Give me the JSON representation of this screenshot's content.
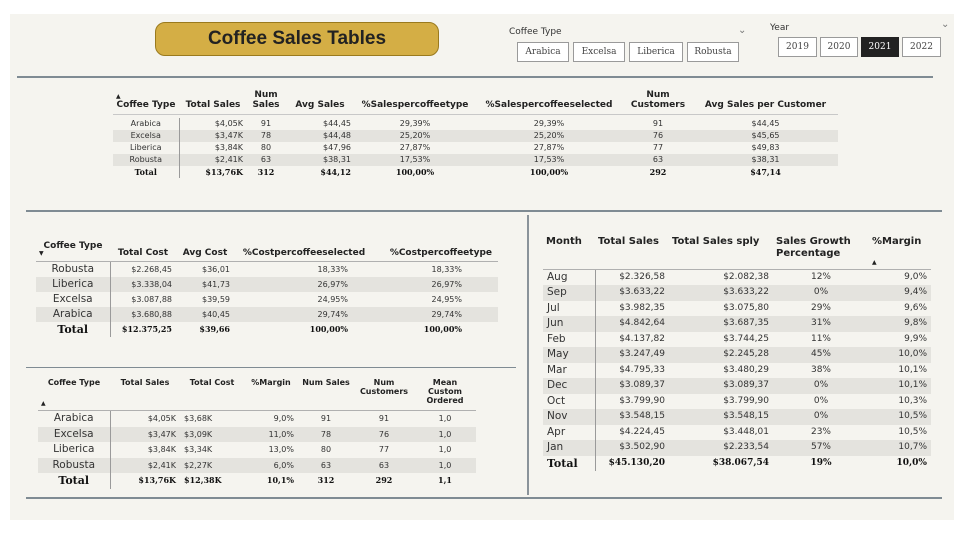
{
  "title": "Coffee Sales Tables",
  "coffee_slicer": {
    "label": "Coffee Type",
    "options": [
      "Arabica",
      "Excelsa",
      "Liberica",
      "Robusta"
    ]
  },
  "year_slicer": {
    "label": "Year",
    "options": [
      "2019",
      "2020",
      "2021",
      "2022"
    ],
    "selected": "2021"
  },
  "table1": {
    "headers": [
      "Coffee Type",
      "Total Sales",
      "Num Sales",
      "Avg Sales",
      "%Salespercoffeetype",
      "%Salespercoffeeselected",
      "Num Customers",
      "Avg Sales per Customer"
    ],
    "rows": [
      [
        "Arabica",
        "$4,05K",
        "91",
        "$44,45",
        "29,39%",
        "29,39%",
        "91",
        "$44,45"
      ],
      [
        "Excelsa",
        "$3,47K",
        "78",
        "$44,48",
        "25,20%",
        "25,20%",
        "76",
        "$45,65"
      ],
      [
        "Liberica",
        "$3,84K",
        "80",
        "$47,96",
        "27,87%",
        "27,87%",
        "77",
        "$49,83"
      ],
      [
        "Robusta",
        "$2,41K",
        "63",
        "$38,31",
        "17,53%",
        "17,53%",
        "63",
        "$38,31"
      ]
    ],
    "total": [
      "Total",
      "$13,76K",
      "312",
      "$44,12",
      "100,00%",
      "100,00%",
      "292",
      "$47,14"
    ]
  },
  "table2": {
    "headers": [
      "Coffee Type",
      "Total Cost",
      "Avg Cost",
      "%Costpercoffeeselected",
      "%Costpercoffeetype"
    ],
    "rows": [
      [
        "Robusta",
        "$2.268,45",
        "$36,01",
        "18,33%",
        "18,33%"
      ],
      [
        "Liberica",
        "$3.338,04",
        "$41,73",
        "26,97%",
        "26,97%"
      ],
      [
        "Excelsa",
        "$3.087,88",
        "$39,59",
        "24,95%",
        "24,95%"
      ],
      [
        "Arabica",
        "$3.680,88",
        "$40,45",
        "29,74%",
        "29,74%"
      ]
    ],
    "total": [
      "Total",
      "$12.375,25",
      "$39,66",
      "100,00%",
      "100,00%"
    ]
  },
  "table3": {
    "headers": [
      "Coffee Type",
      "Total Sales",
      "Total Cost",
      "%Margin",
      "Num Sales",
      "Num Customers",
      "Mean Custom Ordered"
    ],
    "rows": [
      [
        "Arabica",
        "$4,05K",
        "$3,68K",
        "9,0%",
        "91",
        "91",
        "1,0"
      ],
      [
        "Excelsa",
        "$3,47K",
        "$3,09K",
        "11,0%",
        "78",
        "76",
        "1,0"
      ],
      [
        "Liberica",
        "$3,84K",
        "$3,34K",
        "13,0%",
        "80",
        "77",
        "1,0"
      ],
      [
        "Robusta",
        "$2,41K",
        "$2,27K",
        "6,0%",
        "63",
        "63",
        "1,0"
      ]
    ],
    "total": [
      "Total",
      "$13,76K",
      "$12,38K",
      "10,1%",
      "312",
      "292",
      "1,1"
    ]
  },
  "table4": {
    "headers": [
      "Month",
      "Total Sales",
      "Total Sales sply",
      "Sales Growth Percentage",
      "%Margin"
    ],
    "rows": [
      [
        "Aug",
        "$2.326,58",
        "$2.082,38",
        "12%",
        "9,0%"
      ],
      [
        "Sep",
        "$3.633,22",
        "$3.633,22",
        "0%",
        "9,4%"
      ],
      [
        "Jul",
        "$3.982,35",
        "$3.075,80",
        "29%",
        "9,6%"
      ],
      [
        "Jun",
        "$4.842,64",
        "$3.687,35",
        "31%",
        "9,8%"
      ],
      [
        "Feb",
        "$4.137,82",
        "$3.744,25",
        "11%",
        "9,9%"
      ],
      [
        "May",
        "$3.247,49",
        "$2.245,28",
        "45%",
        "10,0%"
      ],
      [
        "Mar",
        "$4.795,33",
        "$3.480,29",
        "38%",
        "10,1%"
      ],
      [
        "Dec",
        "$3.089,37",
        "$3.089,37",
        "0%",
        "10,1%"
      ],
      [
        "Oct",
        "$3.799,90",
        "$3.799,90",
        "0%",
        "10,3%"
      ],
      [
        "Nov",
        "$3.548,15",
        "$3.548,15",
        "0%",
        "10,5%"
      ],
      [
        "Apr",
        "$4.224,45",
        "$3.448,01",
        "23%",
        "10,5%"
      ],
      [
        "Jan",
        "$3.502,90",
        "$2.233,54",
        "57%",
        "10,7%"
      ]
    ],
    "total": [
      "Total",
      "$45.130,20",
      "$38.067,54",
      "19%",
      "10,0%"
    ]
  }
}
